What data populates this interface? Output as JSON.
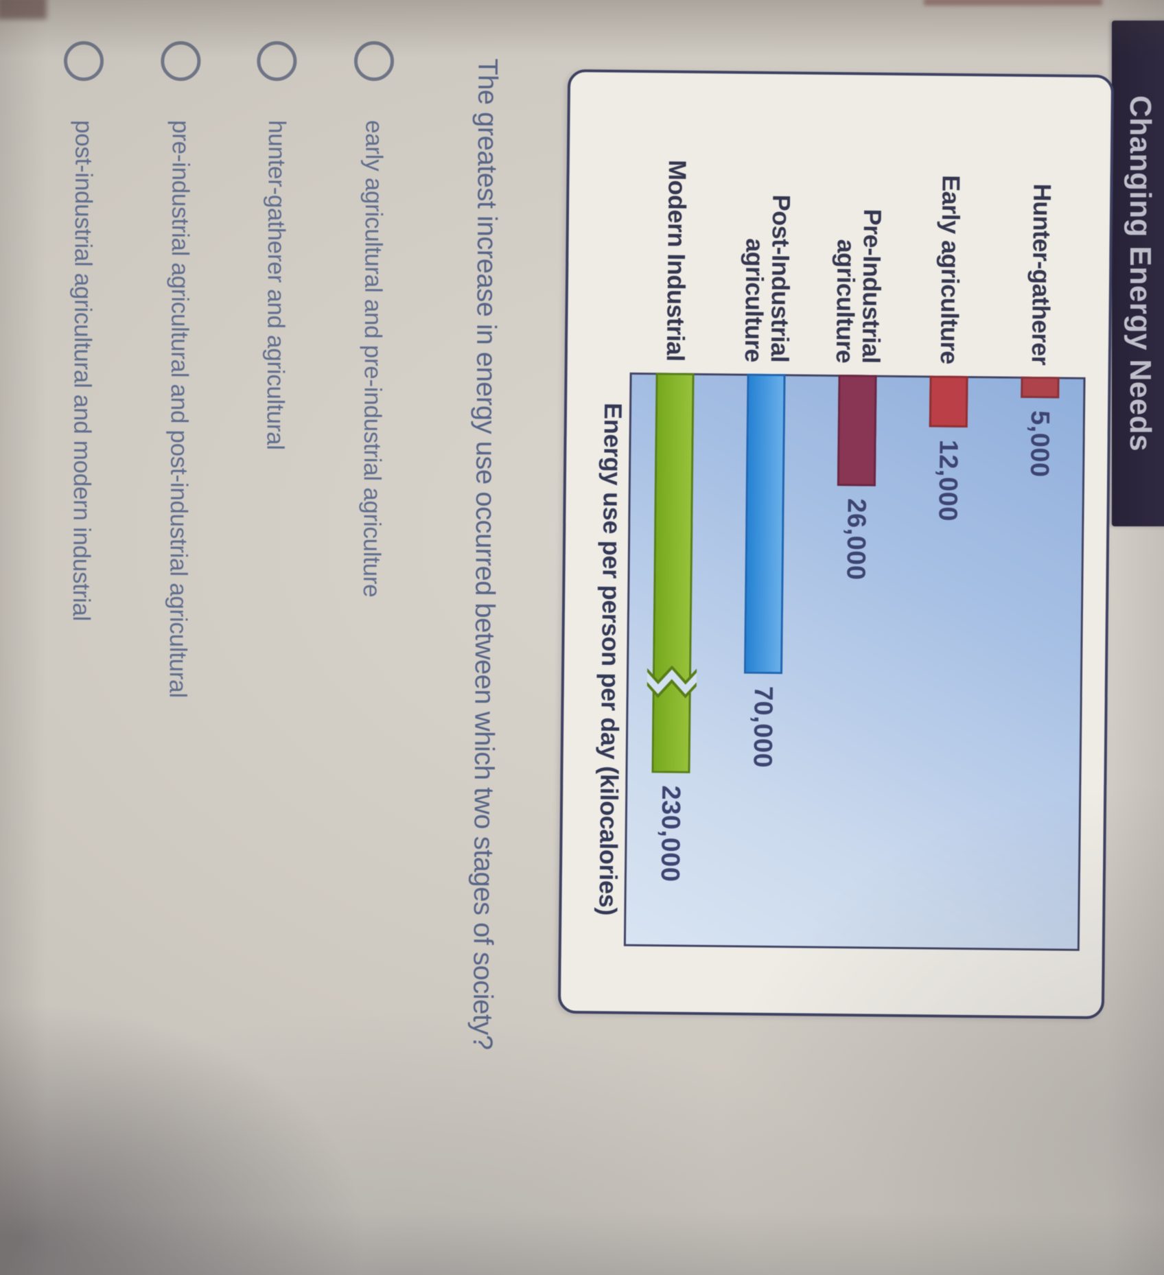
{
  "page": {
    "title": "Changing Energy Needs"
  },
  "chart_data": {
    "type": "bar",
    "orientation": "horizontal",
    "title": "Changing Energy Needs",
    "categories": [
      "Hunter-gatherer",
      "Early agriculture",
      "Pre-Industrial agriculture",
      "Post-Industrial agriculture",
      "Modern Industrial"
    ],
    "category_lines": [
      [
        "Hunter-gatherer"
      ],
      [
        "Early agriculture"
      ],
      [
        "Pre-Industrial",
        "agriculture"
      ],
      [
        "Post-Industrial",
        "agriculture"
      ],
      [
        "Modern Industrial"
      ]
    ],
    "values": [
      5000,
      12000,
      26000,
      70000,
      230000
    ],
    "value_labels": [
      "5,000",
      "12,000",
      "26,000",
      "70,000",
      "230,000"
    ],
    "xlabel": "Energy use per person per day (kilocalories)",
    "axis_break": {
      "category": "Modern Industrial",
      "between": [
        70000,
        230000
      ]
    },
    "bar_colors": [
      "#b64048",
      "#c23b43",
      "#8e3153",
      "#2e8fe8",
      "#7fb41c"
    ],
    "bar_border_colors": [
      "#8c2f37",
      "#942c34",
      "#6b2442",
      "#1865b8",
      "#557f0e"
    ],
    "bar_gradients": [
      null,
      null,
      null,
      [
        "#65b2f2",
        "#1e83dc"
      ],
      [
        "#96c531",
        "#74ab12"
      ]
    ],
    "plot_background": "#a9c4ec",
    "grid": false,
    "legend": false
  },
  "question": {
    "text": "The greatest increase in energy use occurred between which two stages of society?"
  },
  "options": [
    {
      "label": "early agricultural and pre-industrial agriculture",
      "selected": false
    },
    {
      "label": "hunter-gatherer and agricultural",
      "selected": false
    },
    {
      "label": "pre-industrial agricultural and post-industrial agricultural",
      "selected": false
    },
    {
      "label": "post-industrial agricultural and modern industrial",
      "selected": false
    }
  ],
  "colors": {
    "titlebar_bg": "#272138",
    "titlebar_text": "#c7c7d5",
    "card_bg": "#f2efe8",
    "card_border": "#3c3f63",
    "question_text": "#55648a",
    "option_text": "#5e6d90",
    "radio_ring": "#6e7587"
  }
}
